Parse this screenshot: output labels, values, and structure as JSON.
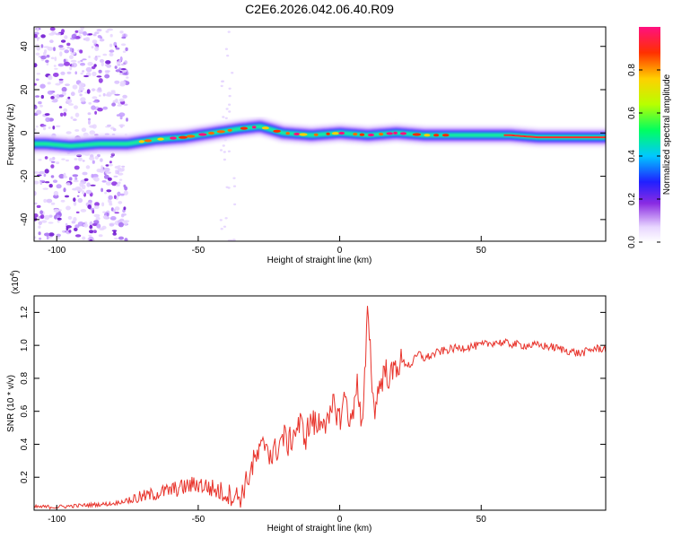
{
  "title": "C2E6.2026.042.06.40.R09",
  "chart_data": [
    {
      "type": "heatmap",
      "xlabel": "Height of straight line (km)",
      "ylabel": "Frequency (Hz)",
      "xlim": [
        -108,
        94
      ],
      "ylim": [
        -50,
        49
      ],
      "xticks": [
        -100,
        -50,
        0,
        50
      ],
      "yticks": [
        -40,
        -20,
        0,
        20,
        40
      ],
      "ridge": {
        "x": [
          -104,
          -95,
          -85,
          -75,
          -70,
          -65,
          -55,
          -45,
          -35,
          -28,
          -20,
          -10,
          0,
          10,
          20,
          30,
          40,
          50,
          60,
          70,
          80,
          94
        ],
        "y": [
          -5,
          -6,
          -5,
          -5,
          -4,
          -3,
          -2,
          0,
          2,
          3,
          0,
          -1,
          0,
          -1,
          0,
          -1,
          -1,
          -1,
          -1,
          -2,
          -2,
          -2
        ]
      },
      "noise_region_x": [
        -108,
        -75
      ],
      "colorbar": {
        "label": "Normalized spectral amplitude",
        "range": [
          0,
          1
        ],
        "ticks": [
          "0.0",
          "0.2",
          "0.4",
          "0.6",
          "0.8"
        ]
      }
    },
    {
      "type": "line",
      "xlabel": "Height of straight line (km)",
      "ylabel": "SNR (10 * v/v)",
      "y_multiplier": "(x10^4)",
      "xlim": [
        -108,
        94
      ],
      "ylim": [
        0,
        1.3
      ],
      "xticks": [
        -100,
        -50,
        0,
        50
      ],
      "yticks": [
        "0.2",
        "0.4",
        "0.6",
        "0.8",
        "1.0",
        "1.2"
      ],
      "series": [
        {
          "color": "#e8332b",
          "x": [
            -108,
            -100,
            -90,
            -80,
            -75,
            -70,
            -65,
            -60,
            -55,
            -50,
            -45,
            -40,
            -35,
            -32,
            -30,
            -28,
            -26,
            -24,
            -22,
            -20,
            -18,
            -16,
            -14,
            -12,
            -10,
            -8,
            -6,
            -4,
            -2,
            0,
            2,
            4,
            6,
            8,
            10,
            12,
            14,
            16,
            18,
            20,
            22,
            25,
            28,
            30,
            35,
            40,
            45,
            50,
            55,
            60,
            65,
            70,
            75,
            80,
            85,
            90,
            94
          ],
          "y": [
            0.02,
            0.02,
            0.03,
            0.04,
            0.06,
            0.08,
            0.1,
            0.12,
            0.14,
            0.16,
            0.13,
            0.1,
            0.08,
            0.22,
            0.3,
            0.35,
            0.42,
            0.32,
            0.38,
            0.45,
            0.4,
            0.48,
            0.52,
            0.45,
            0.55,
            0.5,
            0.58,
            0.5,
            0.65,
            0.55,
            0.7,
            0.5,
            0.8,
            0.45,
            1.25,
            0.6,
            0.75,
            0.85,
            0.8,
            0.88,
            0.9,
            0.88,
            0.95,
            0.92,
            0.96,
            0.98,
            0.99,
            1.0,
            1.02,
            1.01,
            1.0,
            1.0,
            0.99,
            0.97,
            0.95,
            0.98,
            0.98
          ]
        }
      ]
    }
  ]
}
